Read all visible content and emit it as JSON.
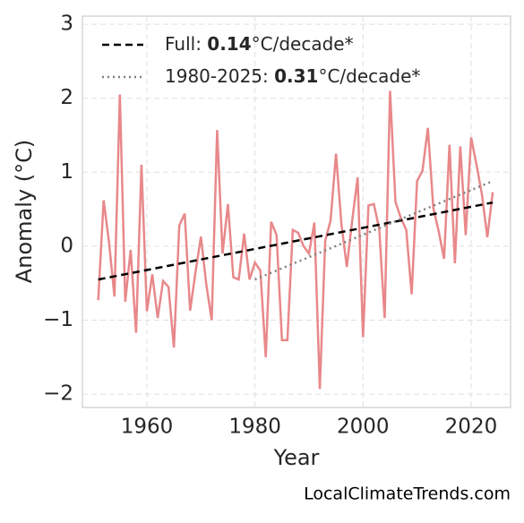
{
  "chart_data": {
    "type": "line",
    "x_label": "Year",
    "y_label": "Anomaly (°C)",
    "source": "LocalClimateTrends.com",
    "x": [
      1951,
      1952,
      1953,
      1954,
      1955,
      1956,
      1957,
      1958,
      1959,
      1960,
      1961,
      1962,
      1963,
      1964,
      1965,
      1966,
      1967,
      1968,
      1969,
      1970,
      1971,
      1972,
      1973,
      1974,
      1975,
      1976,
      1977,
      1978,
      1979,
      1980,
      1981,
      1982,
      1983,
      1984,
      1985,
      1986,
      1987,
      1988,
      1989,
      1990,
      1991,
      1992,
      1993,
      1994,
      1995,
      1996,
      1997,
      1998,
      1999,
      2000,
      2001,
      2002,
      2003,
      2004,
      2005,
      2006,
      2007,
      2008,
      2009,
      2010,
      2011,
      2012,
      2013,
      2014,
      2015,
      2016,
      2017,
      2018,
      2019,
      2020,
      2021,
      2022,
      2023,
      2024
    ],
    "values": [
      -0.73,
      0.62,
      0.05,
      -0.68,
      2.05,
      -0.75,
      -0.05,
      -1.17,
      1.1,
      -0.88,
      -0.38,
      -0.97,
      -0.47,
      -0.55,
      -1.37,
      0.28,
      0.44,
      -0.87,
      -0.35,
      0.13,
      -0.52,
      -1.0,
      1.57,
      -0.1,
      0.57,
      -0.42,
      -0.45,
      0.17,
      -0.45,
      -0.22,
      -0.33,
      -1.5,
      0.33,
      0.15,
      -1.27,
      -1.27,
      0.22,
      0.18,
      0.0,
      -0.1,
      0.32,
      -1.93,
      0.07,
      0.35,
      1.25,
      0.3,
      -0.28,
      0.35,
      0.93,
      -1.23,
      0.55,
      0.57,
      0.23,
      -0.97,
      2.1,
      0.6,
      0.38,
      0.22,
      -0.65,
      0.88,
      1.02,
      1.6,
      0.52,
      0.2,
      -0.17,
      1.37,
      -0.23,
      1.35,
      0.15,
      1.47,
      1.1,
      0.7,
      0.12,
      0.73
    ],
    "color": "#e8888a",
    "series": [
      {
        "name": "Full: 0.14°C/decade*",
        "color": "#000000",
        "dash": "dashed",
        "x": [
          1951,
          2024
        ],
        "values": [
          -0.45,
          0.59
        ]
      },
      {
        "name": "1980-2025: 0.31°C/decade*",
        "color": "#808080",
        "dash": "dotted",
        "x": [
          1980,
          2024
        ],
        "values": [
          -0.45,
          0.88
        ]
      }
    ],
    "xlim": [
      1948.07,
      2027.3
    ],
    "ylim": [
      -2.18,
      3.11
    ],
    "xticks": [
      1960,
      1980,
      2000,
      2020
    ],
    "yticks": [
      {
        "value": -2,
        "label": "−2"
      },
      {
        "value": -1,
        "label": "−1"
      },
      0,
      1,
      2,
      3
    ],
    "grid": true,
    "legend": "upper left"
  }
}
